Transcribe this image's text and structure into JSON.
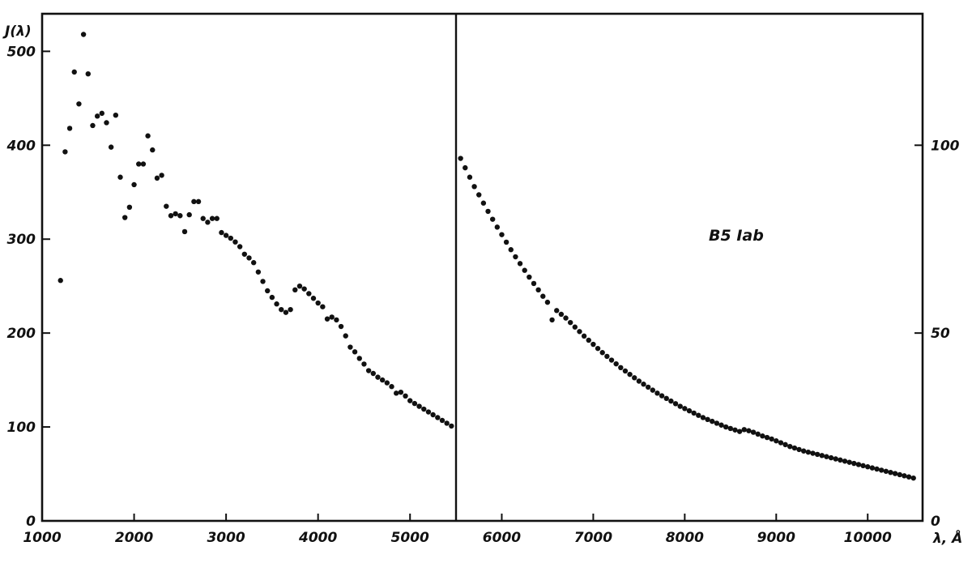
{
  "chart_data": {
    "type": "scatter",
    "title": "",
    "ylabel": "J(λ)",
    "xlabel": "λ, Å",
    "annotation": "B5 Iab",
    "grid": false,
    "panels": [
      {
        "name": "",
        "xlim": [
          1000,
          5500
        ],
        "ylim": [
          0,
          540
        ],
        "y_axis_side": "left",
        "xticks": [
          1000,
          2000,
          3000,
          4000,
          5000
        ],
        "xtick_labels": [
          "1000",
          "2000",
          "3000",
          "4000",
          "5000"
        ],
        "yticks": [
          0,
          100,
          200,
          300,
          400,
          500
        ],
        "ytick_labels": [
          "0",
          "100",
          "200",
          "300",
          "400",
          "500"
        ],
        "points": [
          [
            1200,
            256
          ],
          [
            1250,
            393
          ],
          [
            1300,
            418
          ],
          [
            1350,
            478
          ],
          [
            1400,
            444
          ],
          [
            1450,
            518
          ],
          [
            1500,
            476
          ],
          [
            1550,
            421
          ],
          [
            1600,
            431
          ],
          [
            1650,
            434
          ],
          [
            1700,
            424
          ],
          [
            1750,
            398
          ],
          [
            1800,
            432
          ],
          [
            1850,
            366
          ],
          [
            1900,
            323
          ],
          [
            1950,
            334
          ],
          [
            2000,
            358
          ],
          [
            2050,
            380
          ],
          [
            2100,
            380
          ],
          [
            2150,
            410
          ],
          [
            2200,
            395
          ],
          [
            2250,
            365
          ],
          [
            2300,
            368
          ],
          [
            2350,
            335
          ],
          [
            2400,
            325
          ],
          [
            2450,
            327
          ],
          [
            2500,
            325
          ],
          [
            2550,
            308
          ],
          [
            2600,
            326
          ],
          [
            2650,
            340
          ],
          [
            2700,
            340
          ],
          [
            2750,
            322
          ],
          [
            2800,
            318
          ],
          [
            2850,
            322
          ],
          [
            2900,
            322
          ],
          [
            2950,
            307
          ],
          [
            3000,
            304
          ],
          [
            3050,
            301
          ],
          [
            3100,
            297
          ],
          [
            3150,
            292
          ],
          [
            3200,
            284
          ],
          [
            3250,
            280
          ],
          [
            3300,
            275
          ],
          [
            3350,
            265
          ],
          [
            3400,
            255
          ],
          [
            3450,
            245
          ],
          [
            3500,
            238
          ],
          [
            3550,
            231
          ],
          [
            3600,
            225
          ],
          [
            3650,
            222
          ],
          [
            3700,
            225
          ],
          [
            3750,
            246
          ],
          [
            3800,
            250
          ],
          [
            3850,
            247
          ],
          [
            3900,
            242
          ],
          [
            3950,
            237
          ],
          [
            4000,
            232
          ],
          [
            4050,
            228
          ],
          [
            4100,
            215
          ],
          [
            4150,
            217
          ],
          [
            4200,
            214
          ],
          [
            4250,
            207
          ],
          [
            4300,
            197
          ],
          [
            4350,
            185
          ],
          [
            4400,
            180
          ],
          [
            4450,
            173
          ],
          [
            4500,
            167
          ],
          [
            4550,
            160
          ],
          [
            4600,
            157
          ],
          [
            4650,
            153
          ],
          [
            4700,
            150
          ],
          [
            4750,
            147
          ],
          [
            4800,
            143
          ],
          [
            4850,
            136
          ],
          [
            4900,
            137
          ],
          [
            4950,
            133
          ],
          [
            5000,
            128
          ],
          [
            5050,
            125
          ],
          [
            5100,
            122
          ],
          [
            5150,
            119
          ],
          [
            5200,
            116
          ],
          [
            5250,
            113
          ],
          [
            5300,
            110
          ],
          [
            5350,
            107
          ],
          [
            5400,
            104
          ],
          [
            5450,
            101
          ]
        ]
      },
      {
        "name": "",
        "xlim": [
          5500,
          10600
        ],
        "ylim": [
          0,
          135
        ],
        "y_axis_side": "right",
        "xticks": [
          6000,
          7000,
          8000,
          9000,
          10000
        ],
        "xtick_labels": [
          "6000",
          "7000",
          "8000",
          "9000",
          "10000"
        ],
        "yticks": [
          0,
          50,
          100
        ],
        "ytick_labels": [
          "0",
          "50",
          "100"
        ],
        "points": [
          [
            5550,
            96.5
          ],
          [
            5600,
            94.0
          ],
          [
            5650,
            91.5
          ],
          [
            5700,
            89.0
          ],
          [
            5750,
            86.8
          ],
          [
            5800,
            84.6
          ],
          [
            5850,
            82.4
          ],
          [
            5900,
            80.3
          ],
          [
            5950,
            78.2
          ],
          [
            6000,
            76.2
          ],
          [
            6050,
            74.2
          ],
          [
            6100,
            72.2
          ],
          [
            6150,
            70.3
          ],
          [
            6200,
            68.5
          ],
          [
            6250,
            66.7
          ],
          [
            6300,
            64.9
          ],
          [
            6350,
            63.2
          ],
          [
            6400,
            61.5
          ],
          [
            6450,
            59.8
          ],
          [
            6500,
            58.2
          ],
          [
            6550,
            53.5
          ],
          [
            6600,
            56.0
          ],
          [
            6650,
            55.0
          ],
          [
            6700,
            54.0
          ],
          [
            6750,
            52.8
          ],
          [
            6800,
            51.6
          ],
          [
            6850,
            50.4
          ],
          [
            6900,
            49.2
          ],
          [
            6950,
            48.1
          ],
          [
            7000,
            47.0
          ],
          [
            7050,
            45.9
          ],
          [
            7100,
            44.8
          ],
          [
            7150,
            43.8
          ],
          [
            7200,
            42.8
          ],
          [
            7250,
            41.8
          ],
          [
            7300,
            40.8
          ],
          [
            7350,
            39.9
          ],
          [
            7400,
            39.0
          ],
          [
            7450,
            38.1
          ],
          [
            7500,
            37.2
          ],
          [
            7550,
            36.4
          ],
          [
            7600,
            35.6
          ],
          [
            7650,
            34.8
          ],
          [
            7700,
            34.0
          ],
          [
            7750,
            33.3
          ],
          [
            7800,
            32.6
          ],
          [
            7850,
            31.9
          ],
          [
            7900,
            31.2
          ],
          [
            7950,
            30.5
          ],
          [
            8000,
            29.9
          ],
          [
            8050,
            29.3
          ],
          [
            8100,
            28.7
          ],
          [
            8150,
            28.1
          ],
          [
            8200,
            27.5
          ],
          [
            8250,
            27.0
          ],
          [
            8300,
            26.5
          ],
          [
            8350,
            26.0
          ],
          [
            8400,
            25.5
          ],
          [
            8450,
            25.0
          ],
          [
            8500,
            24.6
          ],
          [
            8550,
            24.2
          ],
          [
            8600,
            23.8
          ],
          [
            8650,
            24.3
          ],
          [
            8700,
            24.0
          ],
          [
            8750,
            23.6
          ],
          [
            8800,
            23.1
          ],
          [
            8850,
            22.6
          ],
          [
            8900,
            22.2
          ],
          [
            8950,
            21.8
          ],
          [
            9000,
            21.3
          ],
          [
            9050,
            20.8
          ],
          [
            9100,
            20.3
          ],
          [
            9150,
            19.8
          ],
          [
            9200,
            19.4
          ],
          [
            9250,
            19.0
          ],
          [
            9300,
            18.6
          ],
          [
            9350,
            18.3
          ],
          [
            9400,
            18.0
          ],
          [
            9450,
            17.7
          ],
          [
            9500,
            17.4
          ],
          [
            9550,
            17.1
          ],
          [
            9600,
            16.8
          ],
          [
            9650,
            16.5
          ],
          [
            9700,
            16.2
          ],
          [
            9750,
            15.9
          ],
          [
            9800,
            15.6
          ],
          [
            9850,
            15.3
          ],
          [
            9900,
            15.0
          ],
          [
            9950,
            14.7
          ],
          [
            10000,
            14.4
          ],
          [
            10050,
            14.1
          ],
          [
            10100,
            13.8
          ],
          [
            10150,
            13.5
          ],
          [
            10200,
            13.2
          ],
          [
            10250,
            12.9
          ],
          [
            10300,
            12.6
          ],
          [
            10350,
            12.3
          ],
          [
            10400,
            12.0
          ],
          [
            10450,
            11.7
          ],
          [
            10500,
            11.4
          ]
        ]
      }
    ]
  }
}
